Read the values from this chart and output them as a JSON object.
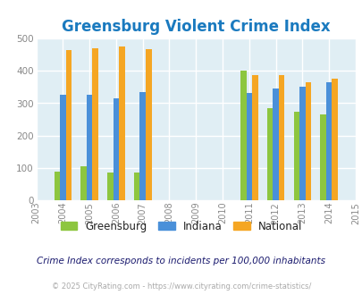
{
  "title": "Greensburg Violent Crime Index",
  "title_color": "#1a7abf",
  "years": [
    2003,
    2004,
    2005,
    2006,
    2007,
    2008,
    2009,
    2010,
    2011,
    2012,
    2013,
    2014,
    2015
  ],
  "data_years": [
    "2004",
    "2005",
    "2006",
    "2007",
    "2011",
    "2012",
    "2013",
    "2014"
  ],
  "data_x": [
    2004,
    2005,
    2006,
    2007,
    2011,
    2012,
    2013,
    2014
  ],
  "greensburg": {
    "2004": 90,
    "2005": 105,
    "2006": 87,
    "2007": 87,
    "2011": 400,
    "2012": 284,
    "2013": 275,
    "2014": 265
  },
  "indiana": {
    "2004": 325,
    "2005": 325,
    "2006": 316,
    "2007": 335,
    "2011": 332,
    "2012": 346,
    "2013": 351,
    "2014": 365
  },
  "national": {
    "2004": 465,
    "2005": 470,
    "2006": 474,
    "2007": 467,
    "2011": 387,
    "2012": 387,
    "2013": 366,
    "2014": 376
  },
  "bar_colors": {
    "greensburg": "#8dc63f",
    "indiana": "#4a90d9",
    "national": "#f5a623"
  },
  "ylim": [
    0,
    500
  ],
  "yticks": [
    0,
    100,
    200,
    300,
    400,
    500
  ],
  "background_color": "#e0eef4",
  "grid_color": "#ffffff",
  "footer_text": "Crime Index corresponds to incidents per 100,000 inhabitants",
  "copyright_text": "© 2025 CityRating.com - https://www.cityrating.com/crime-statistics/",
  "bar_width": 0.22
}
